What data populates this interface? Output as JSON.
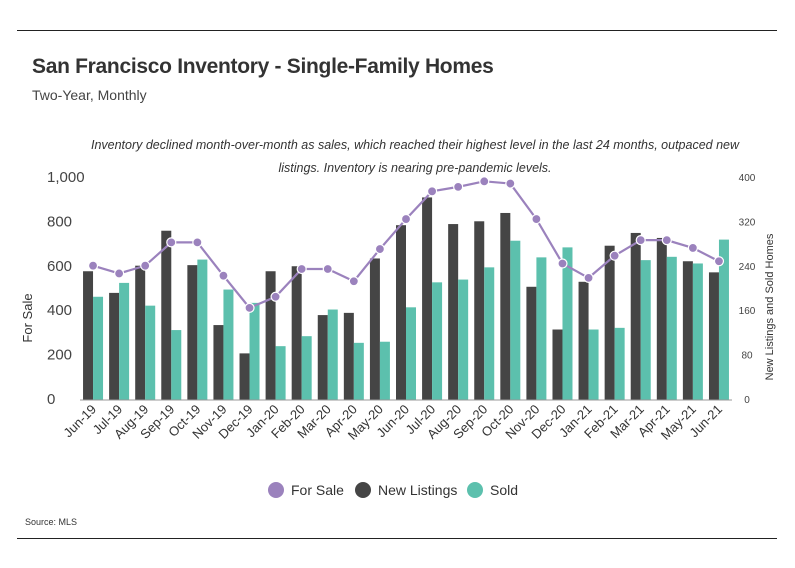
{
  "title": "San Francisco Inventory - Single-Family Homes",
  "subtitle": "Two-Year, Monthly",
  "annotation": "Inventory declined month-over-month as sales, which reached their highest level in the last 24 months, outpaced new listings. Inventory is nearing pre-pandemic levels.",
  "source": "Source:  MLS",
  "colors": {
    "for_sale": "#9b82bd",
    "new_listings": "#454545",
    "sold": "#5cc0ad"
  },
  "chart_data": {
    "type": "bar",
    "categories": [
      "Jun-19",
      "Jul-19",
      "Aug-19",
      "Sep-19",
      "Oct-19",
      "Nov-19",
      "Dec-19",
      "Jan-20",
      "Feb-20",
      "Mar-20",
      "Apr-20",
      "May-20",
      "Jun-20",
      "Jul-20",
      "Aug-20",
      "Sep-20",
      "Oct-20",
      "Nov-20",
      "Dec-20",
      "Jan-21",
      "Feb-21",
      "Mar-21",
      "Apr-21",
      "May-21",
      "Jun-21"
    ],
    "ylabel": "For Sale",
    "y2label": "New Listings and Sold Homes",
    "ylim": [
      0,
      1000
    ],
    "y2lim": [
      0,
      400
    ],
    "yticks": [
      "0",
      "200",
      "400",
      "600",
      "800",
      "1,000"
    ],
    "y2ticks": [
      "0",
      "80",
      "160",
      "240",
      "320",
      "400"
    ],
    "legend_position": "bottom",
    "series": [
      {
        "name": "For Sale",
        "type": "line",
        "axis": "left",
        "values": [
          605,
          570,
          605,
          710,
          710,
          560,
          415,
          465,
          590,
          590,
          535,
          680,
          815,
          940,
          960,
          985,
          975,
          815,
          615,
          550,
          650,
          720,
          720,
          685,
          625
        ]
      },
      {
        "name": "New Listings",
        "type": "bar",
        "axis": "right",
        "values": [
          232,
          193,
          242,
          305,
          243,
          135,
          84,
          232,
          241,
          153,
          157,
          255,
          315,
          365,
          317,
          322,
          337,
          204,
          127,
          213,
          278,
          301,
          292,
          250,
          230
        ]
      },
      {
        "name": "Sold",
        "type": "bar",
        "axis": "right",
        "values": [
          186,
          211,
          170,
          126,
          253,
          199,
          175,
          97,
          115,
          163,
          103,
          105,
          167,
          212,
          217,
          239,
          287,
          257,
          275,
          127,
          130,
          252,
          258,
          246,
          289
        ]
      }
    ]
  }
}
